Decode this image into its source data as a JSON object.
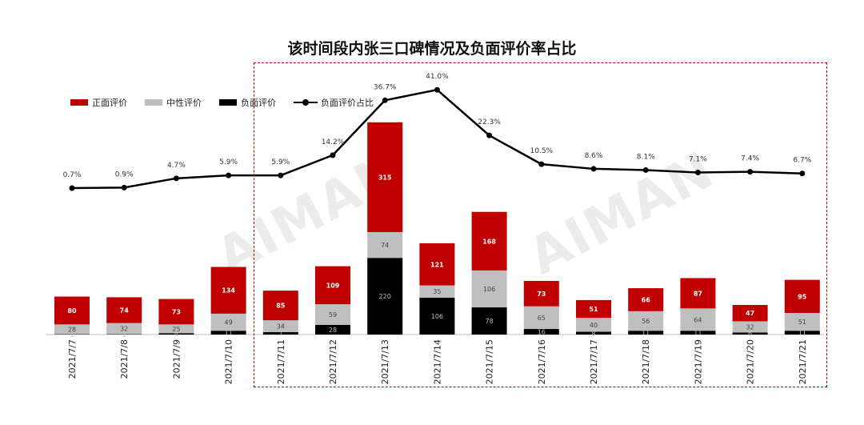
{
  "colors": {
    "positive": "#c00000",
    "neutral": "#bfbfbf",
    "negative": "#000000",
    "highlight_box": "#c00000"
  },
  "watermark": {
    "text": "AIMAN"
  },
  "chart_data": {
    "type": "bar",
    "stacked": true,
    "title": "该时间段内张三口碑情况及负面评价率占比",
    "categories": [
      "2021/7/7",
      "2021/7/8",
      "2021/7/9",
      "2021/7/10",
      "2021/7/11",
      "2021/7/12",
      "2021/7/13",
      "2021/7/14",
      "2021/7/15",
      "2021/7/16",
      "2021/7/17",
      "2021/7/18",
      "2021/7/19",
      "2021/7/20",
      "2021/7/21"
    ],
    "series": [
      {
        "name": "负面评价",
        "color": "#000000",
        "values": [
          1,
          1,
          4,
          11,
          7,
          28,
          220,
          106,
          78,
          16,
          8,
          11,
          11,
          6,
          11
        ],
        "labels": [
          "1",
          "1",
          "4",
          "11",
          "7",
          "28",
          "220",
          "106",
          "78",
          "16",
          "8",
          "11",
          "11",
          "6",
          "11"
        ]
      },
      {
        "name": "中性评价",
        "color": "#bfbfbf",
        "values": [
          28,
          32,
          25,
          49,
          34,
          59,
          74,
          35,
          106,
          65,
          40,
          56,
          64,
          32,
          51
        ],
        "labels": [
          "28",
          "32",
          "25",
          "49",
          "34",
          "59",
          "74",
          "35",
          "106",
          "65",
          "40",
          "56",
          "64",
          "32",
          "51"
        ]
      },
      {
        "name": "正面评价",
        "color": "#c00000",
        "values": [
          80,
          74,
          73,
          134,
          85,
          109,
          315,
          121,
          168,
          73,
          51,
          66,
          87,
          47,
          95
        ],
        "labels": [
          "80",
          "74",
          "73",
          "134",
          "85",
          "109",
          "315",
          "121",
          "168",
          "73",
          "51",
          "66",
          "87",
          "47",
          "95"
        ]
      }
    ],
    "line_series": {
      "name": "负面评价占比",
      "values": [
        0.7,
        0.9,
        4.7,
        5.9,
        5.9,
        14.2,
        36.7,
        41.0,
        22.3,
        10.5,
        8.6,
        8.1,
        7.1,
        7.4,
        6.7
      ],
      "labels": [
        "0.7%",
        "0.9%",
        "4.7%",
        "5.9%",
        "5.9%",
        "14.2%",
        "36.7%",
        "41.0%",
        "22.3%",
        "10.5%",
        "8.6%",
        "8.1%",
        "7.1%",
        "7.4%",
        "6.7%"
      ]
    },
    "legend": {
      "position": "top-left",
      "items": [
        "正面评价",
        "中性评价",
        "负面评价",
        "负面评价占比"
      ]
    },
    "ylim_bars": [
      0,
      620
    ],
    "ylim_line": [
      -60,
      45
    ],
    "highlight_range": [
      "2021/7/11",
      "2021/7/21"
    ]
  }
}
